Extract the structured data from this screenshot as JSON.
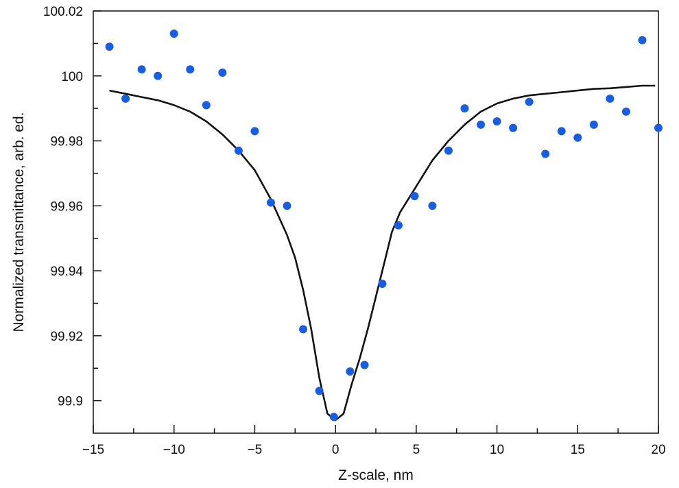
{
  "chart_data": {
    "type": "scatter",
    "xlabel": "Z-scale, nm",
    "ylabel": "Normalized transmittance, arb. ed.",
    "xlim": [
      -15,
      20
    ],
    "ylim": [
      99.89,
      100.02
    ],
    "x_ticks": [
      "−15",
      "−10",
      "−5",
      "0",
      "5",
      "10",
      "15",
      "20"
    ],
    "x_tick_values": [
      -15,
      -10,
      -5,
      0,
      5,
      10,
      15,
      20
    ],
    "y_ticks": [
      "99.9",
      "99.92",
      "99.94",
      "99.96",
      "99.98",
      "100",
      "100.02"
    ],
    "y_tick_values": [
      99.9,
      99.92,
      99.94,
      99.96,
      99.98,
      100.0,
      100.02
    ],
    "grid": false,
    "legend": "none",
    "series": [
      {
        "mark": "points",
        "color": "#1a5ee0",
        "points": [
          [
            -14,
            100.009
          ],
          [
            -13,
            99.993
          ],
          [
            -12,
            100.002
          ],
          [
            -11,
            100.0
          ],
          [
            -10,
            100.013
          ],
          [
            -9,
            100.002
          ],
          [
            -7,
            100.001
          ],
          [
            -8,
            99.991
          ],
          [
            -6,
            99.977
          ],
          [
            -5,
            99.983
          ],
          [
            -4,
            99.961
          ],
          [
            -3,
            99.96
          ],
          [
            -2,
            99.922
          ],
          [
            -1,
            99.903
          ],
          [
            -0.1,
            99.895
          ],
          [
            0.9,
            99.909
          ],
          [
            1.8,
            99.911
          ],
          [
            2.9,
            99.936
          ],
          [
            3.9,
            99.954
          ],
          [
            4.9,
            99.963
          ],
          [
            6,
            99.96
          ],
          [
            7,
            99.977
          ],
          [
            8,
            99.99
          ],
          [
            9,
            99.985
          ],
          [
            10,
            99.986
          ],
          [
            11,
            99.984
          ],
          [
            12,
            99.992
          ],
          [
            13,
            99.976
          ],
          [
            14,
            99.983
          ],
          [
            15,
            99.981
          ],
          [
            16,
            99.985
          ],
          [
            17,
            99.993
          ],
          [
            18,
            99.989
          ],
          [
            19,
            100.011
          ],
          [
            20,
            99.984
          ]
        ]
      },
      {
        "mark": "line",
        "color": "#111111",
        "points": [
          [
            -14,
            99.9955
          ],
          [
            -13,
            99.9945
          ],
          [
            -12,
            99.9935
          ],
          [
            -11,
            99.9925
          ],
          [
            -10,
            99.991
          ],
          [
            -9,
            99.989
          ],
          [
            -8,
            99.986
          ],
          [
            -7,
            99.982
          ],
          [
            -6,
            99.977
          ],
          [
            -5,
            99.971
          ],
          [
            -4,
            99.962
          ],
          [
            -3,
            99.951
          ],
          [
            -2.5,
            99.944
          ],
          [
            -2,
            99.934
          ],
          [
            -1.5,
            99.922
          ],
          [
            -1,
            99.907
          ],
          [
            -0.5,
            99.896
          ],
          [
            0,
            99.894
          ],
          [
            0.5,
            99.896
          ],
          [
            1,
            99.905
          ],
          [
            1.5,
            99.913
          ],
          [
            2,
            99.922
          ],
          [
            2.5,
            99.932
          ],
          [
            3,
            99.942
          ],
          [
            3.5,
            99.952
          ],
          [
            4,
            99.958
          ],
          [
            5,
            99.966
          ],
          [
            6,
            99.974
          ],
          [
            7,
            99.98
          ],
          [
            8,
            99.985
          ],
          [
            9,
            99.989
          ],
          [
            10,
            99.9915
          ],
          [
            11,
            99.993
          ],
          [
            12,
            99.994
          ],
          [
            13,
            99.9945
          ],
          [
            14,
            99.995
          ],
          [
            15,
            99.9955
          ],
          [
            16,
            99.996
          ],
          [
            17,
            99.9962
          ],
          [
            18,
            99.9966
          ],
          [
            19,
            99.997
          ],
          [
            19.8,
            99.997
          ]
        ]
      }
    ]
  }
}
